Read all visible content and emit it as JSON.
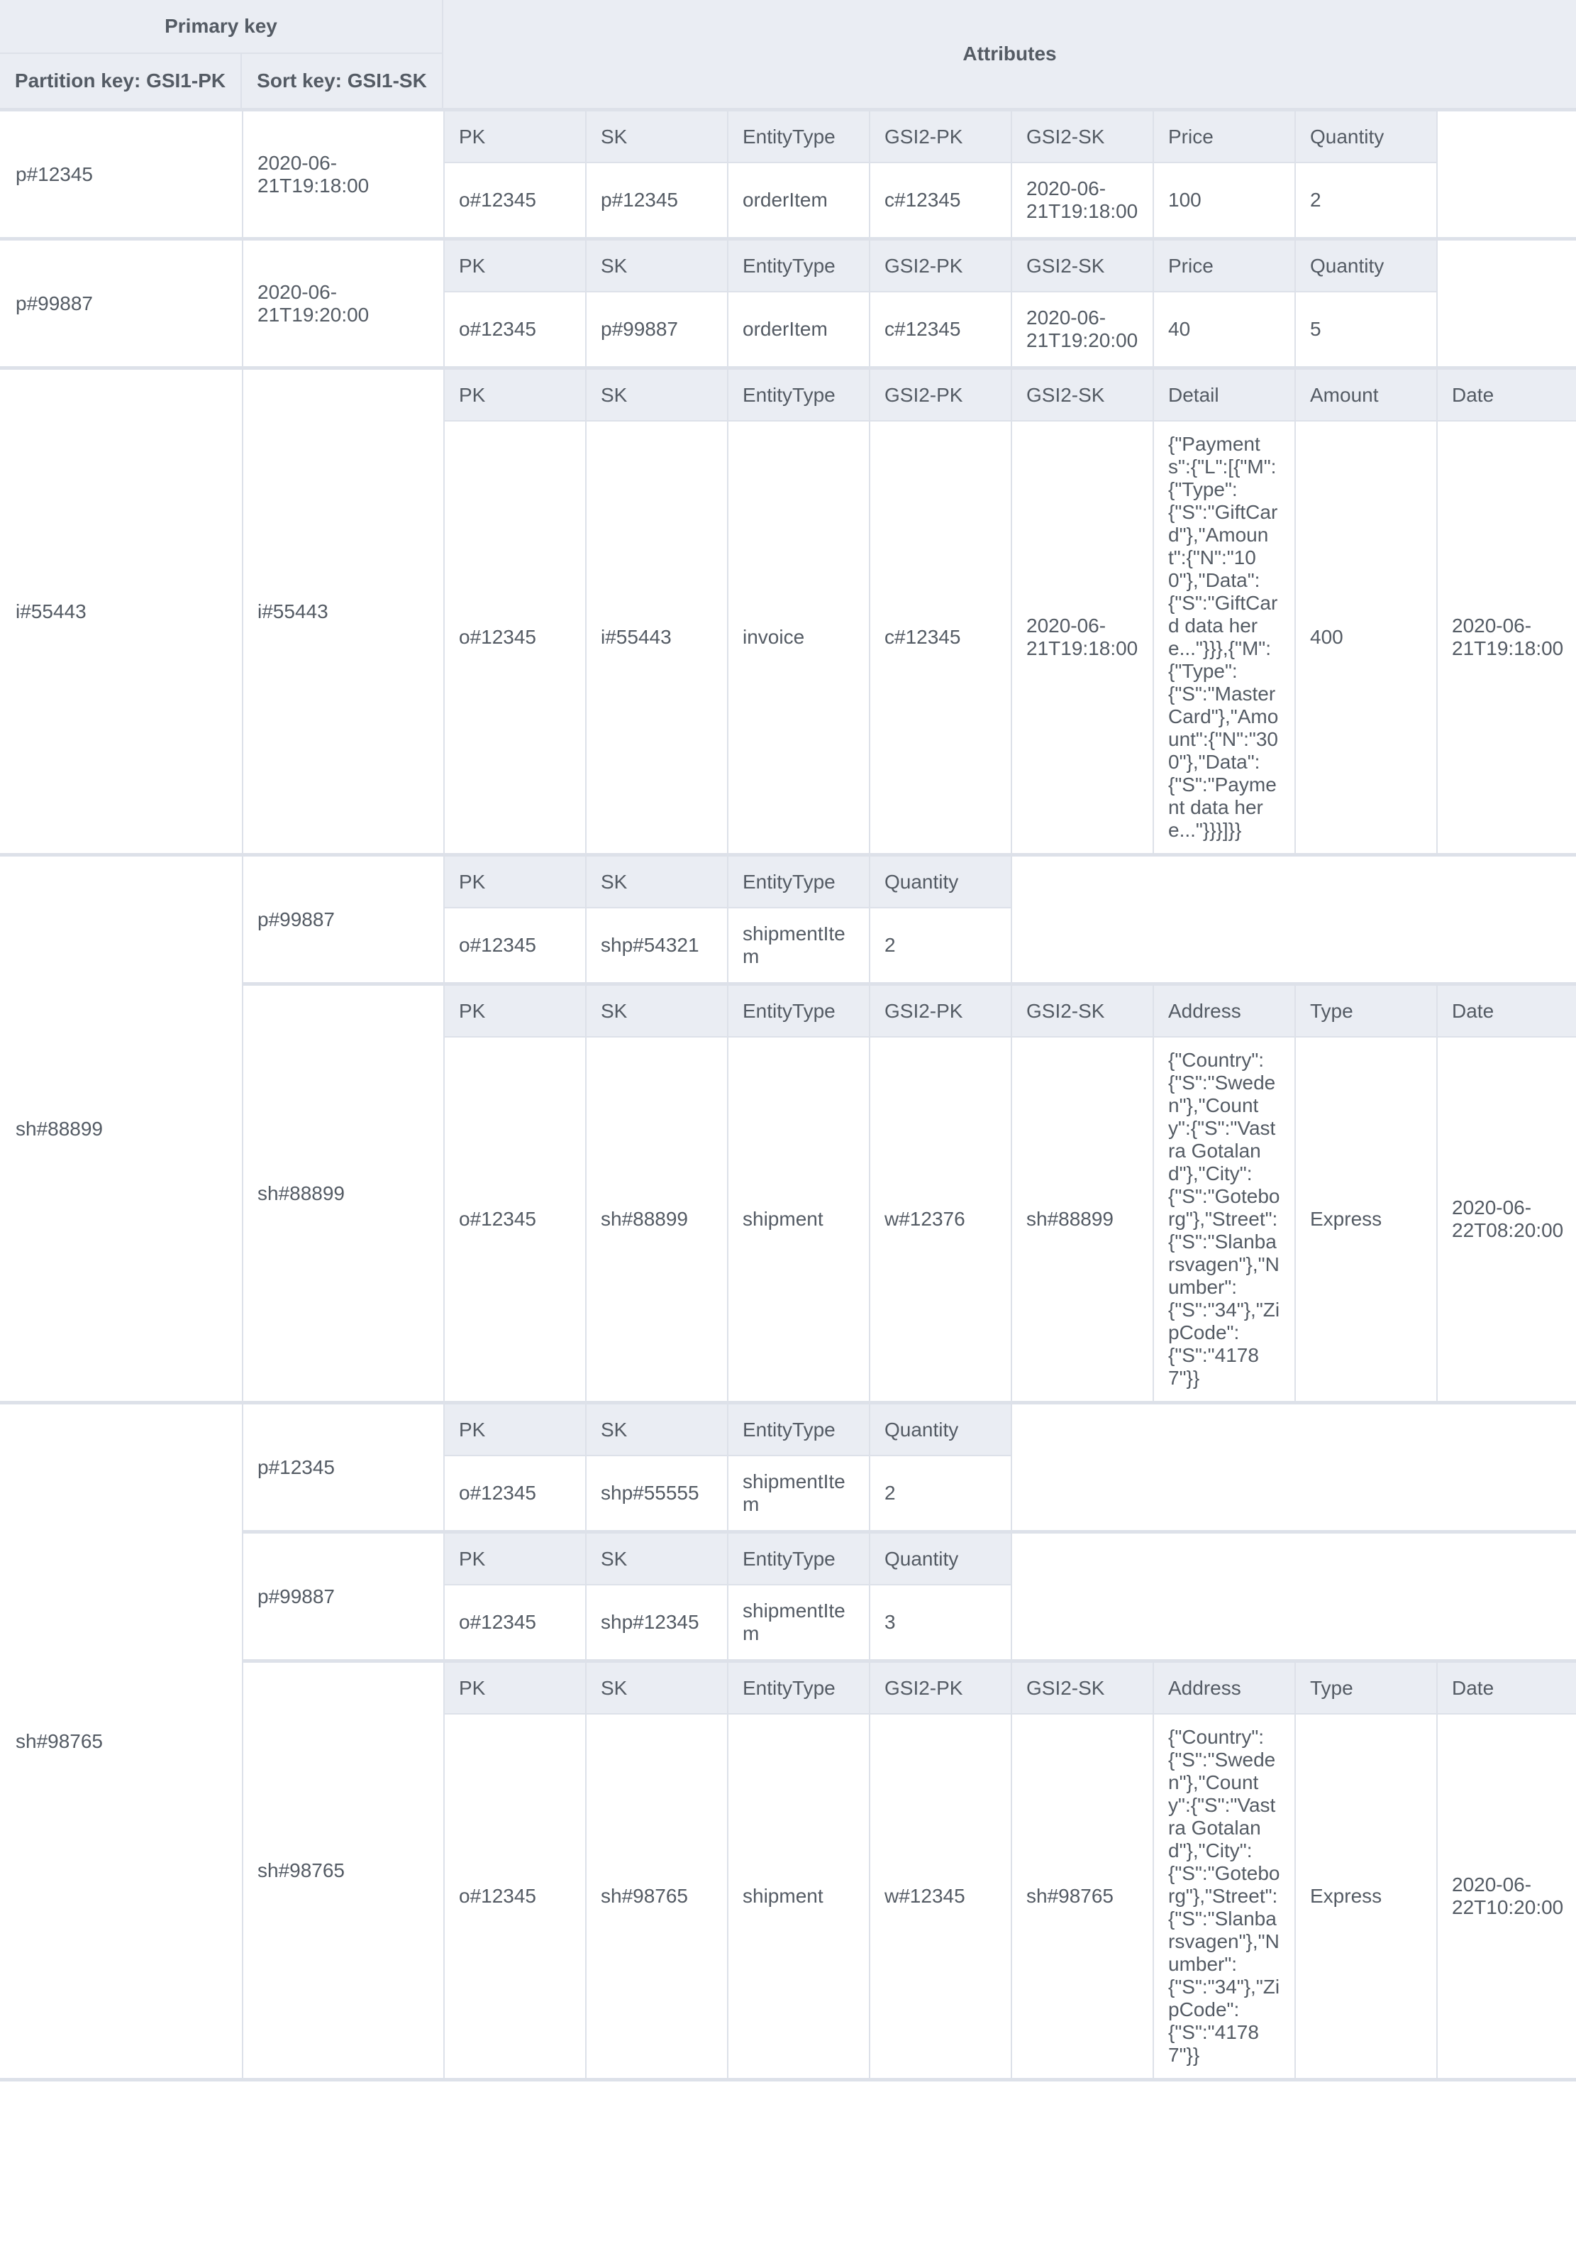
{
  "header": {
    "primary_key": "Primary key",
    "partition_key": "Partition key: GSI1-PK",
    "sort_key": "Sort key: GSI1-SK",
    "attributes": "Attributes"
  },
  "colors": {
    "header_bg": "#eaedf3",
    "border": "#dde1e9",
    "text": "#545b64"
  },
  "groups": [
    {
      "pk": "p#12345",
      "items": [
        {
          "sk": "2020-06-21T19:18:00",
          "headers": [
            "PK",
            "SK",
            "EntityType",
            "GSI2-PK",
            "GSI2-SK",
            "Price",
            "Quantity"
          ],
          "values": [
            "o#12345",
            "p#12345",
            "orderItem",
            "c#12345",
            "2020-06-21T19:18:00",
            "100",
            "2"
          ]
        }
      ]
    },
    {
      "pk": "p#99887",
      "items": [
        {
          "sk": "2020-06-21T19:20:00",
          "headers": [
            "PK",
            "SK",
            "EntityType",
            "GSI2-PK",
            "GSI2-SK",
            "Price",
            "Quantity"
          ],
          "values": [
            "o#12345",
            "p#99887",
            "orderItem",
            "c#12345",
            "2020-06-21T19:20:00",
            "40",
            "5"
          ]
        }
      ]
    },
    {
      "pk": "i#55443",
      "items": [
        {
          "sk": "i#55443",
          "headers": [
            "PK",
            "SK",
            "EntityType",
            "GSI2-PK",
            "GSI2-SK",
            "Detail",
            "Amount",
            "Date"
          ],
          "values": [
            "o#12345",
            "i#55443",
            "invoice",
            "c#12345",
            "2020-06-21T19:18:00",
            "{\"Payments\":{\"L\":[{\"M\":{\"Type\":{\"S\":\"GiftCard\"},\"Amount\":{\"N\":\"100\"},\"Data\":{\"S\":\"GiftCard data here...\"}}},{\"M\":{\"Type\":{\"S\":\"MasterCard\"},\"Amount\":{\"N\":\"300\"},\"Data\":{\"S\":\"Payment data here...\"}}}]}}",
            "400",
            "2020-06-21T19:18:00"
          ]
        }
      ]
    },
    {
      "pk": "sh#88899",
      "items": [
        {
          "sk": "p#99887",
          "headers": [
            "PK",
            "SK",
            "EntityType",
            "Quantity"
          ],
          "values": [
            "o#12345",
            "shp#54321",
            "shipmentItem",
            "2"
          ]
        },
        {
          "sk": "sh#88899",
          "headers": [
            "PK",
            "SK",
            "EntityType",
            "GSI2-PK",
            "GSI2-SK",
            "Address",
            "Type",
            "Date"
          ],
          "values": [
            "o#12345",
            "sh#88899",
            "shipment",
            "w#12376",
            "sh#88899",
            "{\"Country\":{\"S\":\"Sweden\"},\"County\":{\"S\":\"Vastra Gotaland\"},\"City\":{\"S\":\"Goteborg\"},\"Street\":{\"S\":\"Slanbarsvagen\"},\"Number\":{\"S\":\"34\"},\"ZipCode\":{\"S\":\"41787\"}}",
            "Express",
            "2020-06-22T08:20:00"
          ]
        }
      ]
    },
    {
      "pk": "sh#98765",
      "items": [
        {
          "sk": "p#12345",
          "headers": [
            "PK",
            "SK",
            "EntityType",
            "Quantity"
          ],
          "values": [
            "o#12345",
            "shp#55555",
            "shipmentItem",
            "2"
          ]
        },
        {
          "sk": "p#99887",
          "headers": [
            "PK",
            "SK",
            "EntityType",
            "Quantity"
          ],
          "values": [
            "o#12345",
            "shp#12345",
            "shipmentItem",
            "3"
          ]
        },
        {
          "sk": "sh#98765",
          "headers": [
            "PK",
            "SK",
            "EntityType",
            "GSI2-PK",
            "GSI2-SK",
            "Address",
            "Type",
            "Date"
          ],
          "values": [
            "o#12345",
            "sh#98765",
            "shipment",
            "w#12345",
            "sh#98765",
            "{\"Country\":{\"S\":\"Sweden\"},\"County\":{\"S\":\"Vastra Gotaland\"},\"City\":{\"S\":\"Goteborg\"},\"Street\":{\"S\":\"Slanbarsvagen\"},\"Number\":{\"S\":\"34\"},\"ZipCode\":{\"S\":\"41787\"}}",
            "Express",
            "2020-06-22T10:20:00"
          ]
        }
      ]
    }
  ]
}
